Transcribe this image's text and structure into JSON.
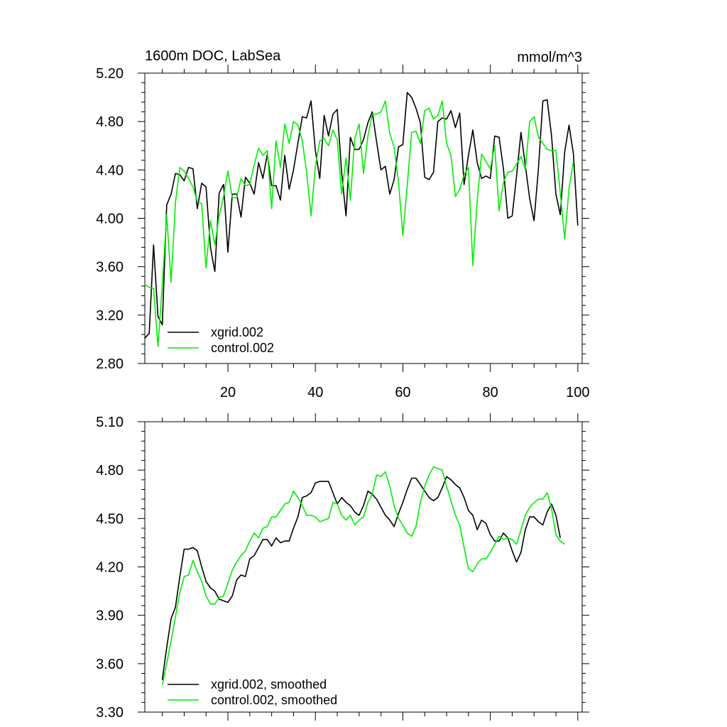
{
  "chart_data": [
    {
      "type": "line",
      "title": "1600m DOC, LabSea",
      "units_label": "mmol/m^3",
      "xlabel": "",
      "ylabel": "",
      "xlim": [
        1,
        101
      ],
      "ylim": [
        2.8,
        5.2
      ],
      "x_ticks": [
        20,
        40,
        60,
        80,
        100
      ],
      "x_tick_labels": [
        "20",
        "40",
        "60",
        "80",
        "100"
      ],
      "y_ticks": [
        2.8,
        3.2,
        3.6,
        4.0,
        4.4,
        4.8,
        5.2
      ],
      "y_tick_labels": [
        "2.80",
        "3.20",
        "3.60",
        "4.00",
        "4.40",
        "4.80",
        "5.20"
      ],
      "legend_position": "bottom-left",
      "grid": false,
      "x_start": 1,
      "series": [
        {
          "name": "xgrid.002",
          "color": "#000000",
          "values": [
            3.01,
            3.05,
            3.78,
            3.19,
            3.12,
            4.11,
            4.2,
            4.37,
            4.36,
            4.31,
            4.42,
            4.41,
            4.08,
            4.29,
            4.26,
            3.76,
            3.56,
            4.21,
            4.28,
            3.72,
            4.2,
            4.2,
            4.01,
            4.34,
            4.29,
            4.2,
            4.46,
            4.33,
            4.53,
            4.27,
            4.27,
            4.15,
            4.52,
            4.24,
            4.4,
            4.62,
            4.84,
            4.83,
            4.97,
            4.56,
            4.33,
            4.85,
            4.68,
            4.86,
            4.9,
            4.38,
            4.02,
            4.67,
            4.57,
            4.57,
            4.65,
            4.79,
            4.88,
            4.63,
            4.4,
            4.43,
            4.2,
            4.32,
            4.59,
            4.61,
            5.04,
            5.0,
            4.91,
            4.79,
            4.34,
            4.32,
            4.38,
            4.8,
            4.83,
            4.82,
            4.89,
            4.75,
            4.87,
            4.28,
            4.52,
            4.73,
            4.46,
            4.33,
            4.35,
            4.33,
            4.68,
            4.67,
            4.41,
            4.0,
            4.02,
            4.35,
            4.71,
            4.44,
            4.16,
            3.98,
            4.41,
            4.97,
            4.98,
            4.68,
            4.2,
            4.03,
            4.55,
            4.77,
            4.53,
            3.94
          ]
        },
        {
          "name": "control.002",
          "color": "#00ee00",
          "values": [
            3.45,
            3.43,
            3.42,
            2.94,
            3.45,
            4.03,
            3.47,
            4.13,
            4.42,
            4.39,
            4.33,
            4.26,
            4.14,
            4.12,
            3.59,
            3.98,
            3.78,
            4.02,
            4.18,
            4.39,
            4.17,
            4.17,
            4.33,
            4.27,
            4.28,
            4.44,
            4.58,
            4.52,
            4.56,
            4.08,
            4.64,
            4.42,
            4.78,
            4.62,
            4.8,
            4.77,
            4.64,
            4.38,
            4.02,
            4.43,
            4.64,
            4.66,
            4.6,
            4.73,
            4.65,
            4.2,
            4.5,
            4.15,
            4.66,
            4.78,
            4.37,
            4.68,
            4.86,
            4.86,
            4.88,
            4.97,
            4.7,
            4.59,
            4.3,
            3.86,
            4.27,
            4.71,
            4.72,
            4.62,
            4.89,
            4.91,
            4.82,
            4.85,
            4.97,
            4.62,
            4.52,
            4.18,
            4.24,
            4.36,
            4.42,
            3.61,
            4.15,
            4.53,
            4.47,
            4.41,
            4.6,
            4.06,
            4.3,
            4.38,
            4.39,
            4.45,
            4.51,
            4.4,
            4.8,
            4.84,
            4.67,
            4.62,
            4.57,
            4.56,
            4.56,
            4.21,
            3.83,
            4.25,
            4.47
          ]
        }
      ]
    },
    {
      "type": "line",
      "title": "",
      "xlabel": "",
      "ylabel": "",
      "xlim": [
        1,
        101
      ],
      "ylim": [
        3.3,
        5.1
      ],
      "x_ticks": [
        20,
        40,
        60,
        80,
        100
      ],
      "x_tick_labels": [],
      "y_ticks": [
        3.3,
        3.6,
        3.9,
        4.2,
        4.5,
        4.8,
        5.1
      ],
      "y_tick_labels": [
        "3.30",
        "3.60",
        "3.90",
        "4.20",
        "4.50",
        "4.80",
        "5.10"
      ],
      "legend_position": "bottom-left",
      "grid": false,
      "x_start": 5,
      "series": [
        {
          "name": "xgrid.002, smoothed",
          "color": "#000000",
          "values": [
            3.5,
            3.7,
            3.88,
            3.95,
            4.14,
            4.31,
            4.31,
            4.32,
            4.3,
            4.2,
            4.11,
            4.07,
            4.05,
            4.0,
            3.99,
            3.98,
            4.02,
            4.12,
            4.15,
            4.14,
            4.25,
            4.27,
            4.32,
            4.37,
            4.37,
            4.33,
            4.38,
            4.35,
            4.36,
            4.36,
            4.44,
            4.51,
            4.63,
            4.64,
            4.66,
            4.72,
            4.73,
            4.73,
            4.73,
            4.66,
            4.59,
            4.63,
            4.6,
            4.58,
            4.54,
            4.52,
            4.58,
            4.67,
            4.65,
            4.62,
            4.57,
            4.52,
            4.49,
            4.45,
            4.53,
            4.6,
            4.68,
            4.75,
            4.75,
            4.71,
            4.67,
            4.63,
            4.61,
            4.63,
            4.69,
            4.76,
            4.74,
            4.71,
            4.69,
            4.63,
            4.55,
            4.52,
            4.43,
            4.49,
            4.47,
            4.4,
            4.36,
            4.36,
            4.41,
            4.38,
            4.3,
            4.23,
            4.29,
            4.43,
            4.51,
            4.51,
            4.48,
            4.46,
            4.54,
            4.59,
            4.52,
            4.38
          ]
        },
        {
          "name": "control.002, smoothed",
          "color": "#00ee00",
          "values": [
            3.47,
            3.6,
            3.74,
            3.89,
            4.04,
            4.14,
            4.15,
            4.24,
            4.17,
            4.11,
            4.02,
            3.97,
            3.97,
            4.01,
            4.02,
            4.1,
            4.18,
            4.23,
            4.27,
            4.3,
            4.36,
            4.41,
            4.38,
            4.44,
            4.45,
            4.51,
            4.51,
            4.55,
            4.59,
            4.6,
            4.67,
            4.63,
            4.58,
            4.52,
            4.52,
            4.51,
            4.48,
            4.49,
            4.5,
            4.6,
            4.59,
            4.52,
            4.49,
            4.52,
            4.46,
            4.49,
            4.51,
            4.6,
            4.65,
            4.77,
            4.76,
            4.79,
            4.7,
            4.58,
            4.5,
            4.46,
            4.41,
            4.39,
            4.45,
            4.6,
            4.7,
            4.77,
            4.82,
            4.81,
            4.8,
            4.7,
            4.61,
            4.52,
            4.46,
            4.32,
            4.19,
            4.17,
            4.22,
            4.25,
            4.25,
            4.29,
            4.34,
            4.39,
            4.37,
            4.38,
            4.37,
            4.34,
            4.43,
            4.52,
            4.57,
            4.6,
            4.62,
            4.62,
            4.66,
            4.56,
            4.4,
            4.36,
            4.34
          ]
        }
      ]
    }
  ]
}
